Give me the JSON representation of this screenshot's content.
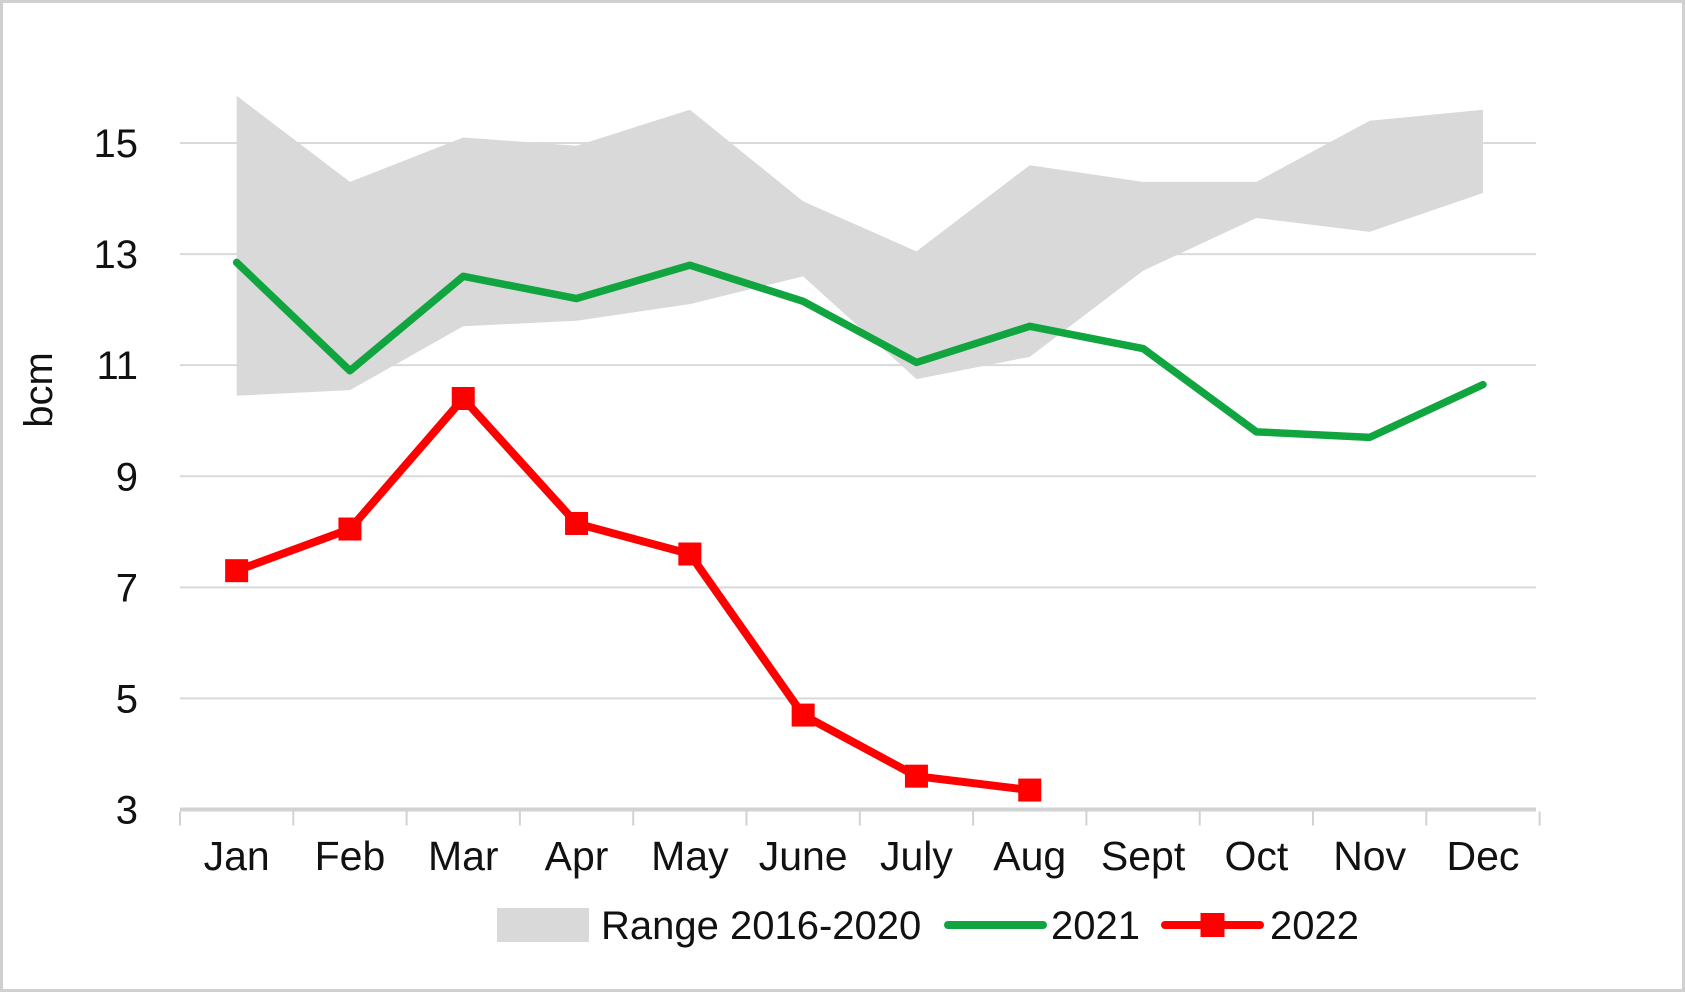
{
  "chart_data": {
    "type": "line",
    "title": "",
    "ylabel": "bcm",
    "categories": [
      "Jan",
      "Feb",
      "Mar",
      "Apr",
      "May",
      "June",
      "July",
      "Aug",
      "Sept",
      "Oct",
      "Nov",
      "Dec"
    ],
    "y_ticks": [
      15,
      13,
      11,
      9,
      7,
      5,
      3
    ],
    "ylim": [
      3,
      16.1
    ],
    "grid": true,
    "legend_position": "bottom",
    "series": [
      {
        "name": "Range 2016-2020",
        "type": "band",
        "upper": [
          15.85,
          14.3,
          15.1,
          14.95,
          15.6,
          13.95,
          13.05,
          14.6,
          14.3,
          14.3,
          15.4,
          15.6
        ],
        "lower": [
          10.45,
          10.55,
          11.7,
          11.8,
          12.1,
          12.6,
          10.75,
          11.15,
          12.7,
          13.65,
          13.4,
          14.1
        ],
        "color": "#D9D9D9"
      },
      {
        "name": "2021",
        "type": "line",
        "values": [
          12.85,
          10.9,
          12.6,
          12.2,
          12.8,
          12.15,
          11.05,
          11.7,
          11.3,
          9.8,
          9.7,
          10.65
        ],
        "color": "#11A53F"
      },
      {
        "name": "2022",
        "type": "line-markers",
        "values": [
          7.3,
          8.05,
          10.4,
          8.15,
          7.6,
          4.7,
          3.6,
          3.35
        ],
        "color": "#FF0000",
        "marker": "square"
      }
    ]
  },
  "colors": {
    "background": "#FFFFFF",
    "frame_border": "#D0D0D0",
    "gridline": "#D9D9D9",
    "axis_line": "#D2D2D2",
    "text": "#111111",
    "band": "#D9D9D9",
    "series_2021": "#11A53F",
    "series_2022": "#FF0000"
  },
  "legend": {
    "items": [
      "Range 2016-2020",
      "2021",
      "2022"
    ]
  }
}
